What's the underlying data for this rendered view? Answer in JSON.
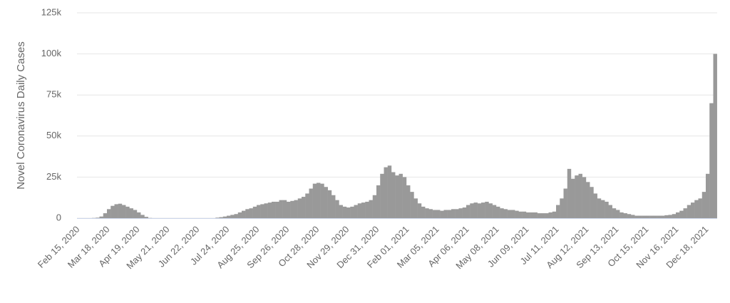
{
  "chart_data": {
    "type": "bar",
    "y_label": "Novel Coronavirus Daily Cases",
    "color": "#999999",
    "grid": true,
    "ylim": [
      0,
      125000
    ],
    "yticks": [
      0,
      {
        "value": 25000,
        "label": "25k"
      },
      {
        "value": 50000,
        "label": "50k"
      },
      {
        "value": 75000,
        "label": "75k"
      },
      {
        "value": 100000,
        "label": "100k"
      },
      {
        "value": 125000,
        "label": "125k"
      }
    ],
    "categories": [
      "Feb 15, 2020",
      null,
      null,
      null,
      null,
      null,
      null,
      null,
      "Mar 18, 2020",
      null,
      null,
      null,
      null,
      null,
      null,
      null,
      "Apr 19, 2020",
      null,
      null,
      null,
      null,
      null,
      null,
      null,
      "May 21, 2020",
      null,
      null,
      null,
      null,
      null,
      null,
      null,
      "Jun 22, 2020",
      null,
      null,
      null,
      null,
      null,
      null,
      null,
      "Jul 24, 2020",
      null,
      null,
      null,
      null,
      null,
      null,
      null,
      "Aug 25, 2020",
      null,
      null,
      null,
      null,
      null,
      null,
      null,
      "Sep 26, 2020",
      null,
      null,
      null,
      null,
      null,
      null,
      null,
      "Oct 28, 2020",
      null,
      null,
      null,
      null,
      null,
      null,
      null,
      "Nov 29, 2020",
      null,
      null,
      null,
      null,
      null,
      null,
      null,
      "Dec 31, 2020",
      null,
      null,
      null,
      null,
      null,
      null,
      null,
      "Feb 01, 2021",
      null,
      null,
      null,
      null,
      null,
      null,
      null,
      "Mar 05, 2021",
      null,
      null,
      null,
      null,
      null,
      null,
      null,
      "Apr 06, 2021",
      null,
      null,
      null,
      null,
      null,
      null,
      null,
      "May 08, 2021",
      null,
      null,
      null,
      null,
      null,
      null,
      null,
      "Jun 09, 2021",
      null,
      null,
      null,
      null,
      null,
      null,
      null,
      "Jul 11, 2021",
      null,
      null,
      null,
      null,
      null,
      null,
      null,
      "Aug 12, 2021",
      null,
      null,
      null,
      null,
      null,
      null,
      null,
      "Sep 13, 2021",
      null,
      null,
      null,
      null,
      null,
      null,
      null,
      "Oct 15, 2021",
      null,
      null,
      null,
      null,
      null,
      null,
      null,
      "Nov 16, 2021",
      null,
      null,
      null,
      null,
      null,
      null,
      null,
      "Dec 18, 2021",
      null,
      null
    ],
    "values": [
      0,
      0,
      0,
      0,
      100,
      300,
      1000,
      3000,
      5500,
      7500,
      8500,
      8800,
      8000,
      7000,
      6000,
      5000,
      3500,
      2000,
      800,
      100,
      0,
      0,
      0,
      0,
      0,
      0,
      0,
      0,
      0,
      0,
      0,
      0,
      0,
      0,
      0,
      0,
      0,
      300,
      600,
      1000,
      1500,
      2000,
      2500,
      3500,
      4500,
      5500,
      6000,
      7000,
      8000,
      8500,
      9000,
      9500,
      10000,
      10000,
      11000,
      11000,
      10000,
      10500,
      11000,
      12000,
      13000,
      15000,
      18000,
      21000,
      21500,
      21000,
      19000,
      17000,
      14000,
      11000,
      8000,
      7000,
      6500,
      7000,
      8000,
      9000,
      9500,
      10000,
      11000,
      14000,
      20000,
      27000,
      31000,
      32000,
      28000,
      26000,
      27000,
      25000,
      20000,
      16000,
      12000,
      9000,
      7000,
      6000,
      5500,
      5000,
      5000,
      4500,
      5000,
      5000,
      5500,
      5500,
      6000,
      6500,
      8000,
      9000,
      9500,
      9000,
      9500,
      10000,
      9000,
      8000,
      7000,
      6000,
      5500,
      5000,
      5000,
      4500,
      4000,
      4000,
      3500,
      3500,
      3500,
      3000,
      3000,
      3000,
      3500,
      4000,
      8000,
      12000,
      18000,
      30000,
      24000,
      26000,
      27000,
      25000,
      22000,
      19000,
      15000,
      12000,
      11000,
      10000,
      8000,
      6000,
      5000,
      3500,
      3000,
      2500,
      2000,
      1500,
      1500,
      1500,
      1500,
      1500,
      1500,
      1500,
      1500,
      1800,
      2000,
      2500,
      3500,
      4500,
      6000,
      8000,
      9500,
      11000,
      12000,
      16000,
      27000,
      70000,
      100000
    ]
  }
}
